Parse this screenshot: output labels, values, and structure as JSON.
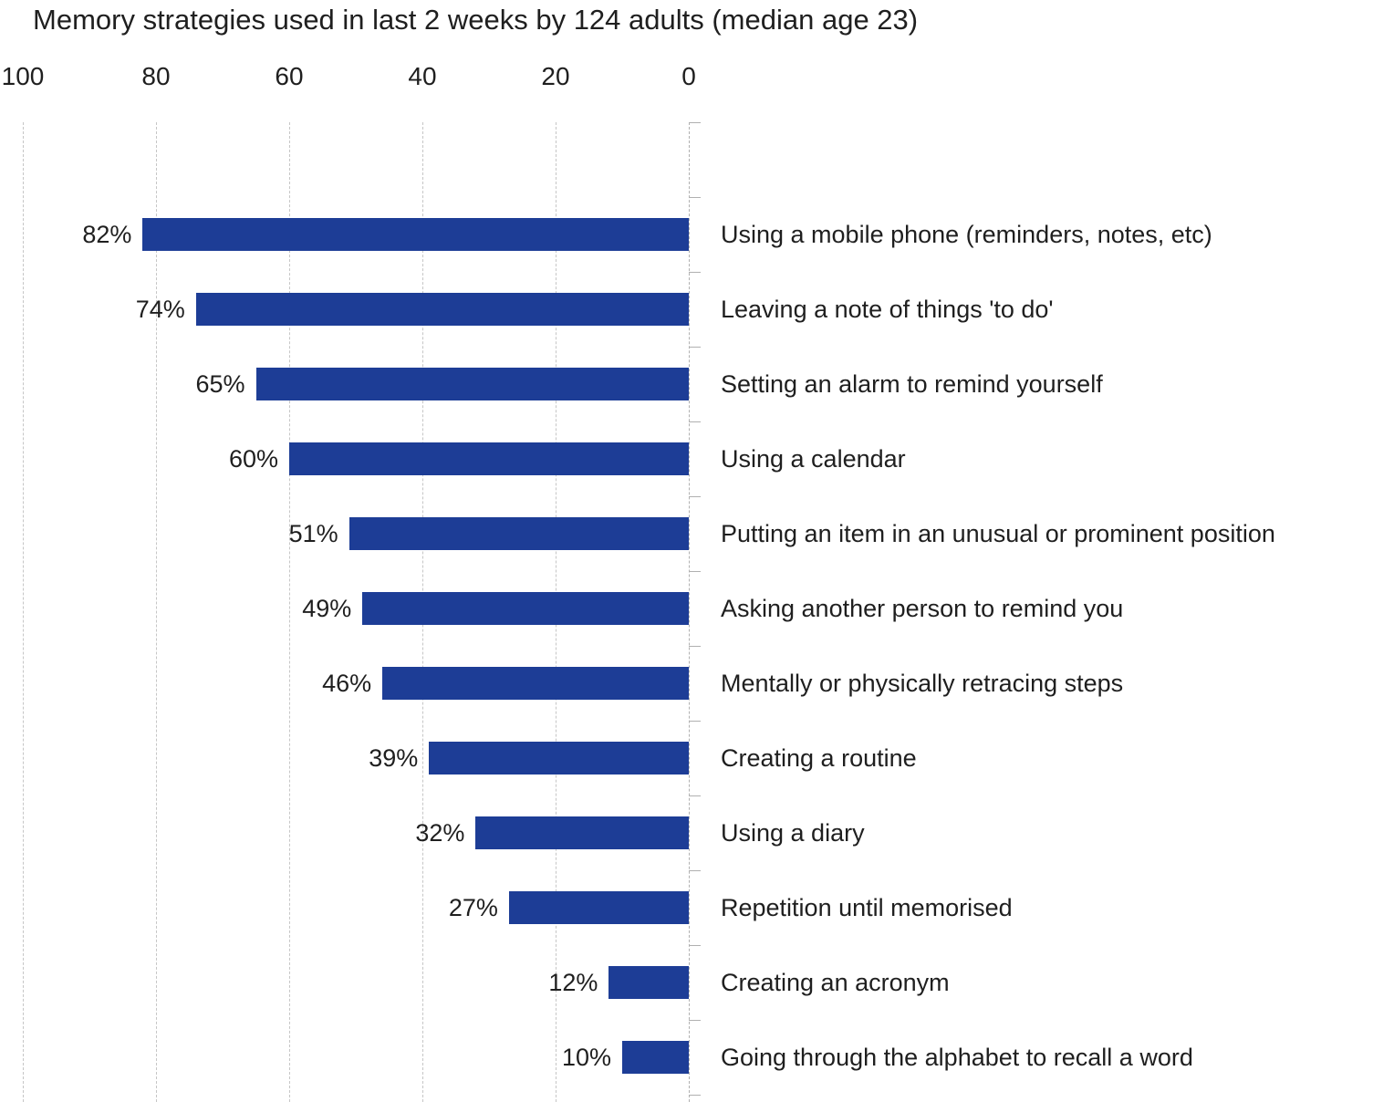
{
  "title": "Memory strategies used in last 2 weeks by 124 adults (median age 23)",
  "chart_data": {
    "type": "bar",
    "orientation": "horizontal",
    "value_axis_side": "top",
    "value_axis_direction": "reversed (0 at right, 100 at left)",
    "title": "Memory strategies used in last 2 weeks by 124 adults (median age 23)",
    "categories": [
      "Using a mobile phone (reminders, notes, etc)",
      "Leaving a note of things 'to do'",
      "Setting an alarm to remind yourself",
      "Using a calendar",
      "Putting an item in an unusual or prominent position",
      "Asking another person to remind you",
      "Mentally or physically retracing steps",
      "Creating a routine",
      "Using a diary",
      "Repetition until memorised",
      "Creating an acronym",
      "Going through the alphabet to recall a word"
    ],
    "values": [
      82,
      74,
      65,
      60,
      51,
      49,
      46,
      39,
      32,
      27,
      12,
      10
    ],
    "value_labels": [
      "82%",
      "74%",
      "65%",
      "60%",
      "51%",
      "49%",
      "46%",
      "39%",
      "32%",
      "27%",
      "12%",
      "10%"
    ],
    "axis_ticks": [
      100,
      80,
      60,
      40,
      20,
      0
    ],
    "xlim": [
      0,
      100
    ],
    "grid": true,
    "legend": false,
    "colors": {
      "bar": "#1d3d96",
      "gridline": "#c6c6c6",
      "axis": "#b0b0b0",
      "text": "#1f1f1f",
      "background": "#ffffff"
    }
  }
}
